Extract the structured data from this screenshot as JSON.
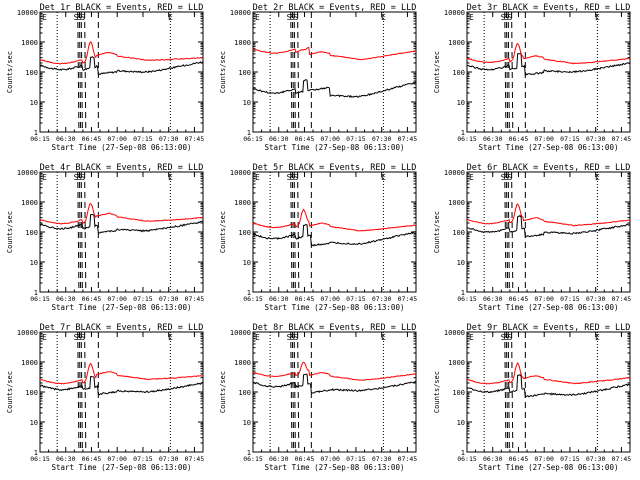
{
  "chart_data": {
    "type": "line",
    "x_tick_labels": [
      "06:15",
      "06:30",
      "06:45",
      "07:00",
      "07:15",
      "07:30",
      "07:45"
    ],
    "x_tick_minutes": [
      0,
      15,
      30,
      45,
      60,
      75,
      90
    ],
    "x_range_minutes": [
      0,
      95
    ],
    "y_scale": "log",
    "y_range": [
      1,
      10000
    ],
    "y_tick_labels": [
      "1",
      "10",
      "100",
      "1000",
      "10000"
    ],
    "y_tick_values": [
      1,
      10,
      100,
      1000,
      10000
    ],
    "series_colors": {
      "events": "#000000",
      "lld": "#ff0000"
    },
    "markers": {
      "dotted_minutes": [
        10,
        76
      ],
      "dashed_minutes": [
        22,
        23,
        24,
        26,
        34
      ],
      "flag_labels": [
        {
          "minute": 21,
          "text": "S"
        },
        {
          "minute": 23,
          "text": "S"
        },
        {
          "minute": 25,
          "text": "S"
        },
        {
          "minute": 76,
          "text": "E"
        }
      ],
      "corner_label": "E"
    },
    "panels": [
      {
        "title": "Det 1r BLACK = Events, RED = LLD",
        "xlabel": "Start Time (27-Sep-08 06:13:00)",
        "ylabel": "Counts/sec",
        "black": {
          "base": 120,
          "gap": [
            28,
            34
          ],
          "peak": 350,
          "dip": 100,
          "end": 220,
          "after": 85
        },
        "red": {
          "base": 200,
          "peak": 1000,
          "bump": 450,
          "end": 300
        }
      },
      {
        "title": "Det 2r BLACK = Events, RED = LLD",
        "xlabel": "Start Time (27-Sep-08 06:13:00)",
        "ylabel": "Counts/sec",
        "black": {
          "base": 20,
          "gap": [
            28,
            34
          ],
          "peak": 60,
          "dip": 15,
          "end": 45,
          "after": 25
        },
        "red": {
          "base": 450,
          "peak": 550,
          "bump": 480,
          "end": 500
        }
      },
      {
        "title": "Det 3r BLACK = Events, RED = LLD",
        "xlabel": "Start Time (27-Sep-08 06:13:00)",
        "ylabel": "Counts/sec",
        "black": {
          "base": 120,
          "gap": [
            26,
            32
          ],
          "peak": 500,
          "dip": 100,
          "end": 200,
          "after": 80
        },
        "red": {
          "base": 220,
          "peak": 900,
          "bump": 350,
          "end": 280
        }
      },
      {
        "title": "Det 4r BLACK = Events, RED = LLD",
        "xlabel": "Start Time (27-Sep-08 06:13:00)",
        "ylabel": "Counts/sec",
        "black": {
          "base": 130,
          "gap": [
            28,
            34
          ],
          "peak": 450,
          "dip": 110,
          "end": 220,
          "after": 95
        },
        "red": {
          "base": 200,
          "peak": 900,
          "bump": 420,
          "end": 300
        }
      },
      {
        "title": "Det 5r BLACK = Events, RED = LLD",
        "xlabel": "Start Time (27-Sep-08 06:13:00)",
        "ylabel": "Counts/sec",
        "black": {
          "base": 60,
          "gap": [
            26,
            32
          ],
          "peak": 200,
          "dip": 40,
          "end": 100,
          "after": 35
        },
        "red": {
          "base": 150,
          "peak": 550,
          "bump": 200,
          "end": 170
        }
      },
      {
        "title": "Det 6r BLACK = Events, RED = LLD",
        "xlabel": "Start Time (27-Sep-08 06:13:00)",
        "ylabel": "Counts/sec",
        "black": {
          "base": 100,
          "gap": [
            26,
            32
          ],
          "peak": 450,
          "dip": 90,
          "end": 180,
          "after": 70
        },
        "red": {
          "base": 200,
          "peak": 850,
          "bump": 300,
          "end": 250
        }
      },
      {
        "title": "Det 7r BLACK = Events, RED = LLD",
        "xlabel": "Start Time (27-Sep-08 06:13:00)",
        "ylabel": "Counts/sec",
        "black": {
          "base": 120,
          "gap": [
            28,
            34
          ],
          "peak": 350,
          "dip": 100,
          "end": 200,
          "after": 85
        },
        "red": {
          "base": 200,
          "peak": 900,
          "bump": 480,
          "end": 350
        }
      },
      {
        "title": "Det 8r BLACK = Events, RED = LLD",
        "xlabel": "Start Time (27-Sep-08 06:13:00)",
        "ylabel": "Counts/sec",
        "black": {
          "base": 150,
          "gap": [
            26,
            32
          ],
          "peak": 400,
          "dip": 110,
          "end": 220,
          "after": 95
        },
        "red": {
          "base": 350,
          "peak": 1000,
          "bump": 450,
          "end": 400
        }
      },
      {
        "title": "Det 9r BLACK = Events, RED = LLD",
        "xlabel": "Start Time (27-Sep-08 06:13:00)",
        "ylabel": "Counts/sec",
        "black": {
          "base": 100,
          "gap": [
            26,
            32
          ],
          "peak": 500,
          "dip": 80,
          "end": 180,
          "after": 70
        },
        "red": {
          "base": 200,
          "peak": 900,
          "bump": 350,
          "end": 300
        }
      }
    ]
  }
}
